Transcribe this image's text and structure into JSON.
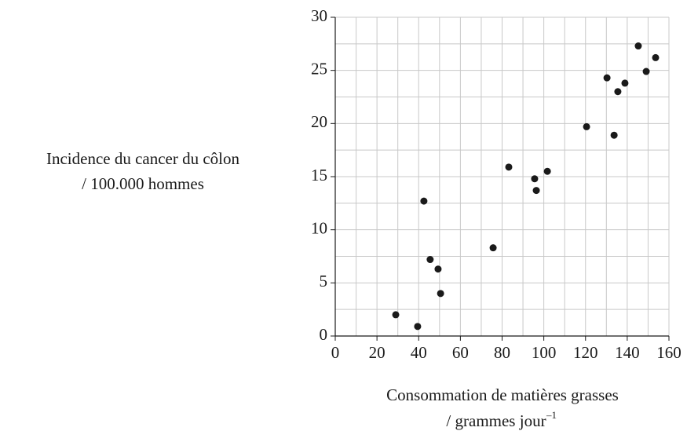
{
  "chart_data": {
    "type": "scatter",
    "ylabel": [
      "Incidence du cancer du côlon",
      "/ 100.000 hommes"
    ],
    "xlabel": [
      "Consommation de matières grasses",
      "/ grammes jour"
    ],
    "xlabel_superscript": "–1",
    "x": [
      29,
      39.5,
      50.5,
      42.5,
      45.5,
      49.3,
      75.7,
      83.2,
      95.6,
      96.4,
      101.7,
      120.5,
      130.3,
      133.7,
      135.5,
      138.9,
      145.3,
      149.1,
      153.6
    ],
    "values": [
      2.0,
      0.9,
      4.0,
      12.7,
      7.2,
      6.3,
      8.3,
      15.9,
      14.8,
      13.7,
      15.5,
      19.7,
      24.3,
      18.9,
      23.0,
      23.8,
      27.3,
      24.9,
      26.2
    ],
    "color": "#1a1a1a",
    "xlim": [
      0,
      160
    ],
    "xticks": [
      0,
      20,
      40,
      60,
      80,
      100,
      120,
      140,
      160
    ],
    "ylim": [
      0,
      30
    ],
    "yticks": [
      0,
      5,
      10,
      15,
      20,
      25,
      30
    ],
    "grid": true,
    "minor_grid_step": [
      10,
      2.5
    ]
  }
}
